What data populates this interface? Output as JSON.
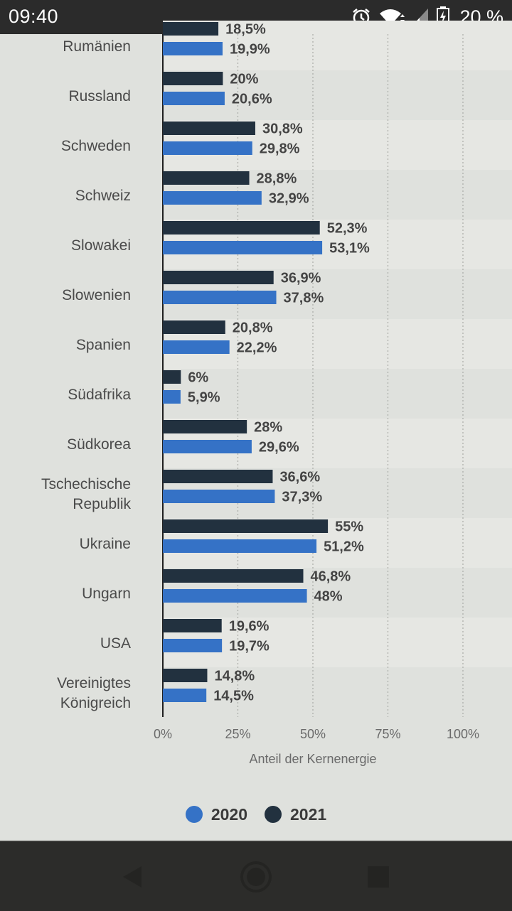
{
  "status_bar": {
    "time": "09:40",
    "battery_text": "20 %",
    "icons": [
      "alarm-icon",
      "wifi-icon",
      "signal-icon",
      "battery-charging-icon"
    ]
  },
  "chart_data": {
    "type": "bar",
    "orientation": "horizontal",
    "xlabel": "Anteil der Kernenergie",
    "ylabel": "",
    "xlim": [
      0,
      100
    ],
    "x_ticks": [
      "0%",
      "25%",
      "50%",
      "75%",
      "100%"
    ],
    "grid": true,
    "legend_position": "bottom",
    "categories": [
      "Rumänien",
      "Russland",
      "Schweden",
      "Schweiz",
      "Slowakei",
      "Slowenien",
      "Spanien",
      "Südafrika",
      "Südkorea",
      "Tschechische Republik",
      "Ukraine",
      "Ungarn",
      "USA",
      "Vereinigtes Königreich"
    ],
    "series": [
      {
        "name": "2021",
        "color": "#22313f",
        "values": [
          18.5,
          20,
          30.8,
          28.8,
          52.3,
          36.9,
          20.8,
          6,
          28,
          36.6,
          55,
          46.8,
          19.6,
          14.8
        ],
        "labels": [
          "18,5%",
          "20%",
          "30,8%",
          "28,8%",
          "52,3%",
          "36,9%",
          "20,8%",
          "6%",
          "28%",
          "36,6%",
          "55%",
          "46,8%",
          "19,6%",
          "14,8%"
        ]
      },
      {
        "name": "2020",
        "color": "#3572c6",
        "values": [
          19.9,
          20.6,
          29.8,
          32.9,
          53.1,
          37.8,
          22.2,
          5.9,
          29.6,
          37.3,
          51.2,
          48,
          19.7,
          14.5
        ],
        "labels": [
          "19,9%",
          "20,6%",
          "29,8%",
          "32,9%",
          "53,1%",
          "37,8%",
          "22,2%",
          "5,9%",
          "29,6%",
          "37,3%",
          "51,2%",
          "48%",
          "19,7%",
          "14,5%"
        ]
      }
    ]
  },
  "legend": {
    "items": [
      {
        "label": "2020",
        "color": "#3572c6"
      },
      {
        "label": "2021",
        "color": "#22313f"
      }
    ]
  },
  "nav_bar": {
    "buttons": [
      "back-icon",
      "home-icon",
      "recents-icon"
    ]
  }
}
